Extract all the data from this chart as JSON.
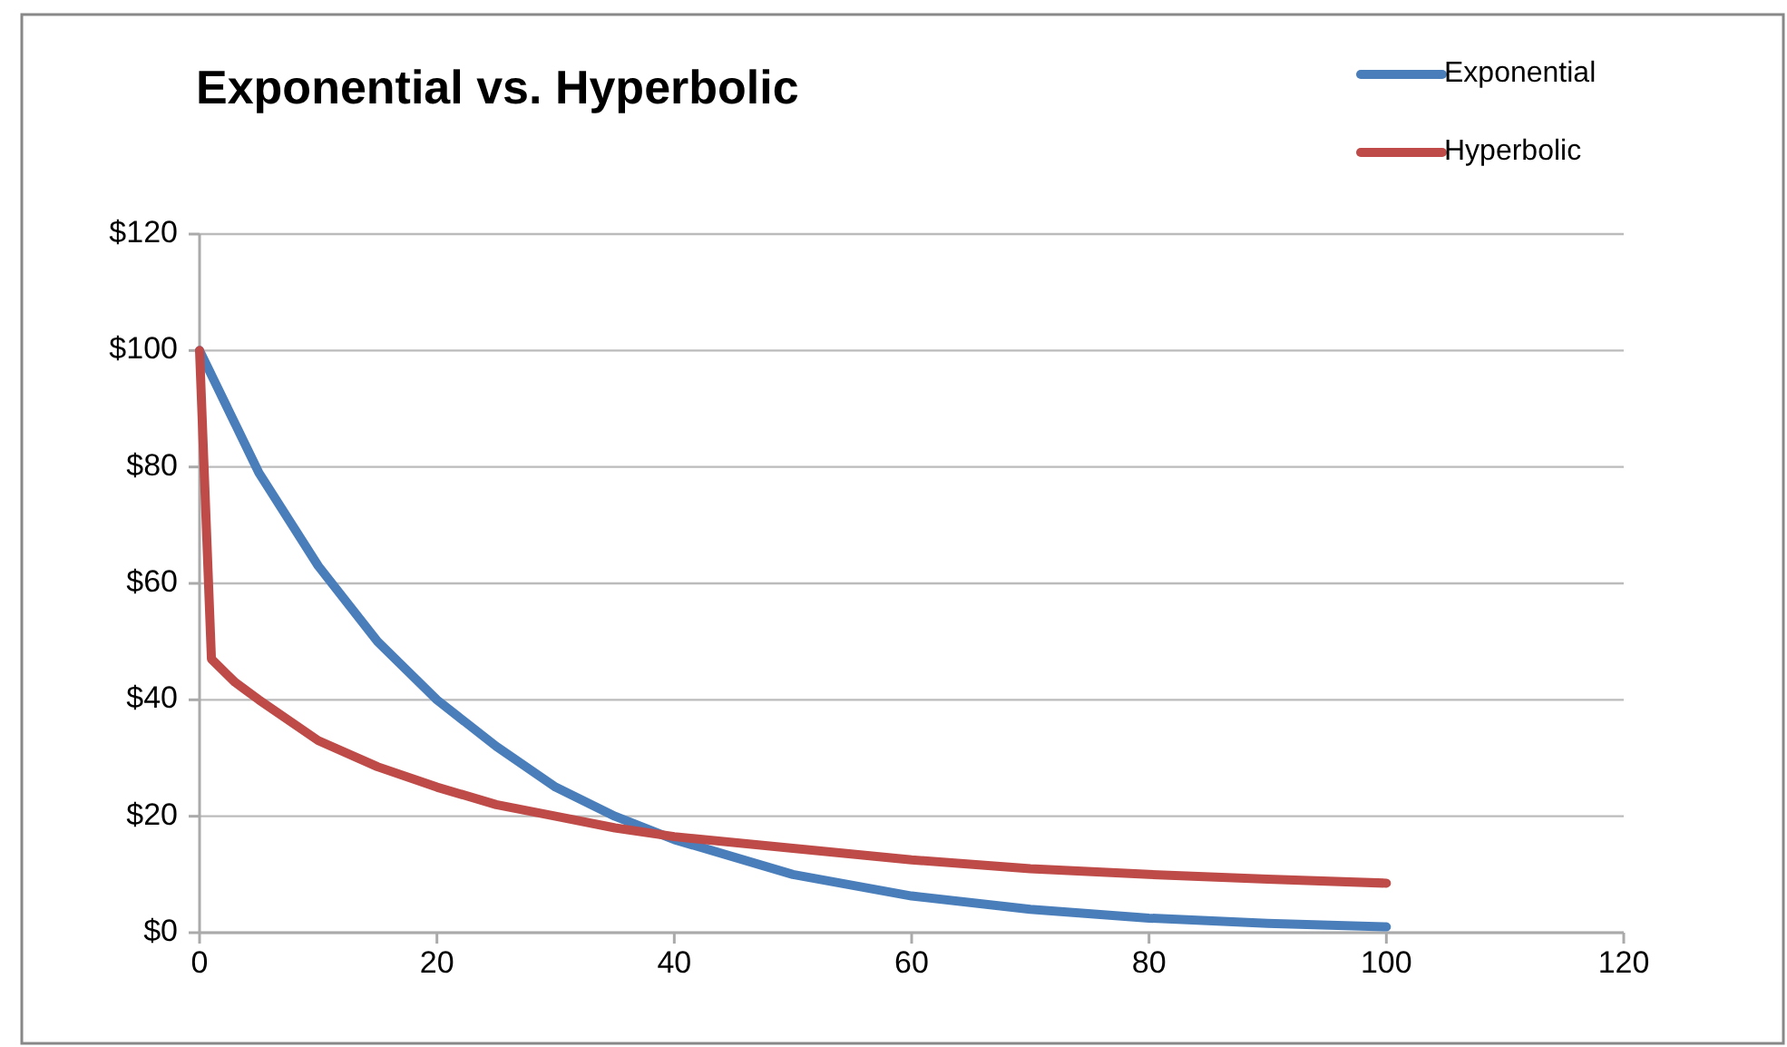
{
  "chart_data": {
    "type": "line",
    "title": "Exponential vs. Hyperbolic",
    "xlim": [
      0,
      120
    ],
    "xticks": [
      0,
      20,
      40,
      60,
      80,
      100,
      120
    ],
    "ylim": [
      0,
      120
    ],
    "yticks": [
      {
        "value": 0,
        "label": "$0"
      },
      {
        "value": 20,
        "label": "$20"
      },
      {
        "value": 40,
        "label": "$40"
      },
      {
        "value": 60,
        "label": "$60"
      },
      {
        "value": 80,
        "label": "$80"
      },
      {
        "value": 100,
        "label": "$100"
      },
      {
        "value": 120,
        "label": "$120"
      }
    ],
    "grid": "y",
    "legend": "top right",
    "marker": "none",
    "line_style": "solid",
    "series": [
      {
        "name": "Exponential",
        "color": "#4a7ebb",
        "x": [
          0,
          5,
          10,
          15,
          20,
          25,
          30,
          35,
          40,
          50,
          60,
          70,
          80,
          90,
          100
        ],
        "values": [
          100,
          79,
          63,
          50,
          40,
          32,
          25,
          20,
          16,
          10,
          6.3,
          4,
          2.5,
          1.6,
          1
        ]
      },
      {
        "name": "Hyperbolic",
        "color": "#be4b48",
        "x": [
          0,
          1,
          3,
          5,
          10,
          15,
          20,
          25,
          30,
          35,
          40,
          50,
          60,
          70,
          80,
          90,
          100
        ],
        "values": [
          100,
          47,
          43,
          40,
          33,
          28.5,
          25,
          22,
          20,
          18,
          16.5,
          14.5,
          12.5,
          11,
          10,
          9.2,
          8.5
        ]
      }
    ]
  }
}
